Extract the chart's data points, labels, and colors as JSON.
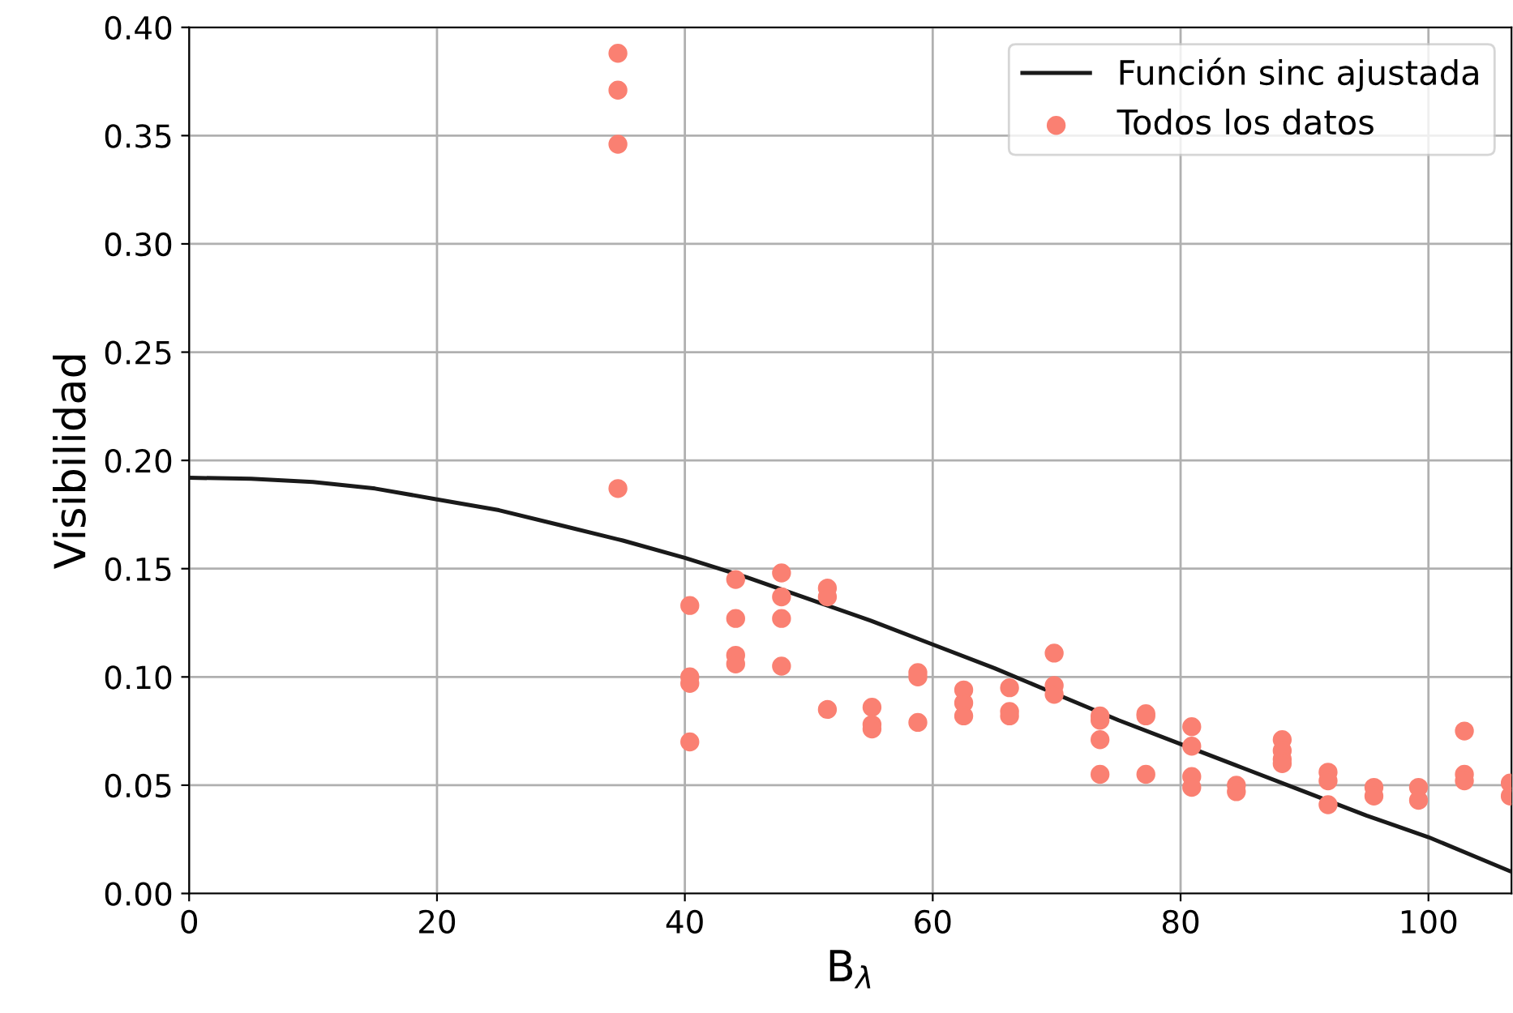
{
  "chart_data": {
    "type": "scatter",
    "xlabel": "B$_{λ}$",
    "ylabel": "Visibilidad",
    "xlim": [
      0,
      106.7
    ],
    "ylim": [
      0,
      0.4
    ],
    "xticks": [
      0,
      20,
      40,
      60,
      80,
      100
    ],
    "yticks": [
      {
        "value": 0,
        "label": "0.00"
      },
      {
        "value": 0.05,
        "label": "0.05"
      },
      {
        "value": 0.1,
        "label": "0.10"
      },
      {
        "value": 0.15,
        "label": "0.15"
      },
      {
        "value": 0.2,
        "label": "0.20"
      },
      {
        "value": 0.25,
        "label": "0.25"
      },
      {
        "value": 0.3,
        "label": "0.30"
      },
      {
        "value": 0.35,
        "label": "0.35"
      },
      {
        "value": 0.4,
        "label": "0.40"
      }
    ],
    "grid": true,
    "legend": "top right",
    "series": [
      {
        "name": "Función sinc ajustada",
        "type": "line",
        "color": "#1a1a1a",
        "marker": "none",
        "line_style": "solid",
        "x": [
          0,
          5,
          10,
          15,
          20,
          25,
          30,
          35,
          40,
          45,
          50,
          55,
          60,
          65,
          70,
          75,
          80,
          85,
          90,
          95,
          100,
          106.7
        ],
        "values": [
          0.192,
          0.1915,
          0.19,
          0.187,
          0.182,
          0.177,
          0.17,
          0.163,
          0.155,
          0.146,
          0.136,
          0.126,
          0.115,
          0.104,
          0.092,
          0.08,
          0.069,
          0.058,
          0.047,
          0.036,
          0.026,
          0.01
        ]
      },
      {
        "name": "Todos los datos",
        "color": "#fa8072",
        "marker": "circle",
        "x": [
          34.6,
          34.6,
          34.6,
          34.6,
          40.4,
          40.4,
          40.4,
          40.4,
          44.1,
          44.1,
          44.1,
          44.1,
          47.8,
          47.8,
          47.8,
          47.8,
          51.5,
          51.5,
          51.5,
          55.1,
          55.1,
          55.1,
          58.8,
          58.8,
          58.8,
          62.5,
          62.5,
          62.5,
          66.2,
          66.2,
          66.2,
          69.8,
          69.8,
          69.8,
          73.5,
          73.5,
          73.5,
          73.5,
          77.2,
          77.2,
          77.2,
          80.9,
          80.9,
          80.9,
          80.9,
          84.5,
          84.5,
          88.2,
          88.2,
          88.2,
          88.2,
          91.9,
          91.9,
          91.9,
          95.6,
          95.6,
          99.2,
          99.2,
          102.9,
          102.9,
          102.9,
          106.6,
          106.6
        ],
        "values": [
          0.388,
          0.371,
          0.346,
          0.187,
          0.133,
          0.1,
          0.097,
          0.07,
          0.145,
          0.127,
          0.11,
          0.106,
          0.148,
          0.137,
          0.127,
          0.105,
          0.141,
          0.137,
          0.085,
          0.086,
          0.078,
          0.076,
          0.102,
          0.1,
          0.079,
          0.094,
          0.088,
          0.082,
          0.095,
          0.084,
          0.082,
          0.111,
          0.096,
          0.092,
          0.082,
          0.08,
          0.071,
          0.055,
          0.083,
          0.082,
          0.055,
          0.077,
          0.068,
          0.054,
          0.049,
          0.05,
          0.047,
          0.071,
          0.066,
          0.062,
          0.06,
          0.056,
          0.052,
          0.041,
          0.049,
          0.045,
          0.049,
          0.043,
          0.075,
          0.055,
          0.052,
          0.051,
          0.045
        ]
      }
    ]
  }
}
